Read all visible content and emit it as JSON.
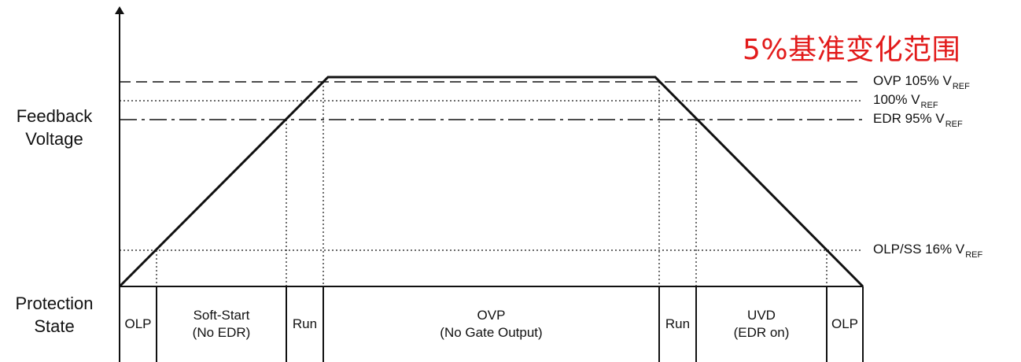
{
  "title": "5%基准变化范围",
  "y_axis_label": {
    "line1": "Feedback",
    "line2": "Voltage"
  },
  "protection_state_label": {
    "line1": "Protection",
    "line2": "State"
  },
  "levels": [
    {
      "id": "ovp",
      "text": "OVP 105% V",
      "sub": "REF",
      "percent_vref": 105,
      "line_style": "dashed"
    },
    {
      "id": "ref",
      "text": "100% V",
      "sub": "REF",
      "percent_vref": 100,
      "line_style": "dotted"
    },
    {
      "id": "edr",
      "text": "EDR  95% V",
      "sub": "REF",
      "percent_vref": 95,
      "line_style": "dash-dot"
    },
    {
      "id": "olp",
      "text": "OLP/SS  16% V",
      "sub": "REF",
      "percent_vref": 16,
      "line_style": "dotted"
    }
  ],
  "states": [
    {
      "id": "olp-start",
      "line1": "OLP",
      "line2": ""
    },
    {
      "id": "soft-start",
      "line1": "Soft-Start",
      "line2": "(No EDR)"
    },
    {
      "id": "run-rise",
      "line1": "Run",
      "line2": ""
    },
    {
      "id": "ovp",
      "line1": "OVP",
      "line2": "(No Gate Output)"
    },
    {
      "id": "run-fall",
      "line1": "Run",
      "line2": ""
    },
    {
      "id": "uvd",
      "line1": "UVD",
      "line2": "(EDR on)"
    },
    {
      "id": "olp-end",
      "line1": "OLP",
      "line2": ""
    }
  ],
  "colors": {
    "annotation": "#e21b1b",
    "lines": "#111111"
  }
}
